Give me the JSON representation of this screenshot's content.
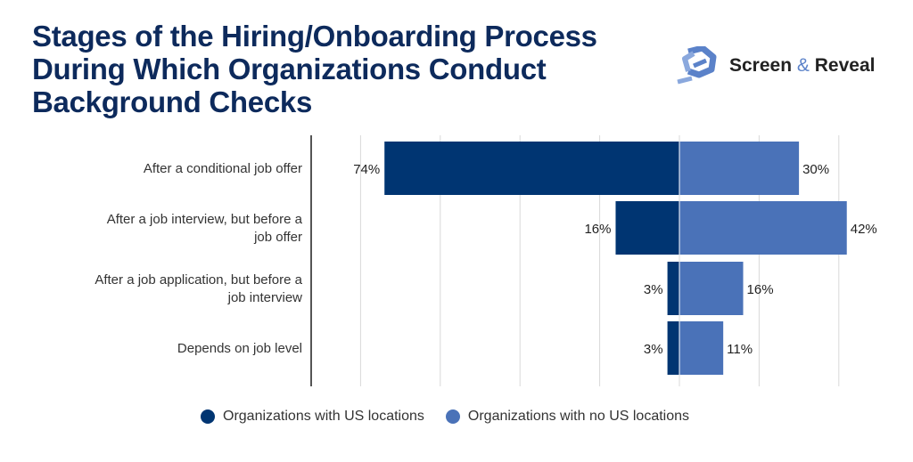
{
  "title_lines": [
    "Stages of the Hiring/Onboarding Process",
    "During Which Organizations Conduct",
    "Background Checks"
  ],
  "logo": {
    "name_part1": "Screen",
    "amp": "&",
    "name_part2": "Reveal",
    "icon": "hexagon-e-logo-icon"
  },
  "colors": {
    "us": "#003572",
    "no_us": "#4a72b8",
    "grid": "#d9d9d9",
    "axis": "#555555"
  },
  "chart_data": {
    "type": "bar",
    "orientation": "horizontal-diverging",
    "title": "Stages of the Hiring/Onboarding Process During Which Organizations Conduct Background Checks",
    "categories": [
      "After a conditional job offer",
      "After a job interview, but before a job offer",
      "After a job application, but before a job interview",
      "Depends on job level"
    ],
    "series": [
      {
        "name": "Organizations with US locations",
        "values": [
          74,
          16,
          3,
          3
        ],
        "direction": "left"
      },
      {
        "name": "Organizations with no US locations",
        "values": [
          30,
          42,
          16,
          11
        ],
        "direction": "right"
      }
    ],
    "unit": "%",
    "grid": true,
    "grid_step": 20,
    "legend": "bottom"
  }
}
